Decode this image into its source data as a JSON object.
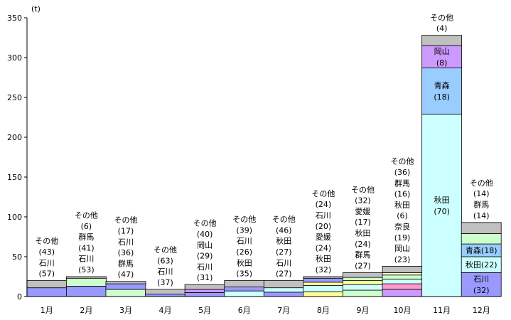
{
  "chart_data": {
    "type": "bar",
    "stacked": true,
    "y_unit_label": "(t)",
    "ylim": [
      0,
      350
    ],
    "yticks": [
      0,
      50,
      100,
      150,
      200,
      250,
      300,
      350
    ],
    "categories": [
      "1月",
      "2月",
      "3月",
      "4月",
      "5月",
      "6月",
      "7月",
      "8月",
      "9月",
      "10月",
      "11月",
      "12月"
    ],
    "bars": [
      {
        "category": "1月",
        "total": 20,
        "segments": [
          {
            "color": "#9999ff",
            "value": 11
          },
          {
            "color": "#c0c0c0",
            "value": 9
          }
        ],
        "labels": [
          "その他",
          "(43)",
          "石川",
          "(57)"
        ]
      },
      {
        "category": "2月",
        "total": 25,
        "segments": [
          {
            "color": "#9999ff",
            "value": 13
          },
          {
            "color": "#ccffcc",
            "value": 10
          },
          {
            "color": "#c0c0c0",
            "value": 2
          }
        ],
        "labels": [
          "その他",
          "(6)",
          "群馬",
          "(41)",
          "石川",
          "(53)"
        ]
      },
      {
        "category": "3月",
        "total": 19,
        "segments": [
          {
            "color": "#ccffcc",
            "value": 9
          },
          {
            "color": "#9999ff",
            "value": 7
          },
          {
            "color": "#c0c0c0",
            "value": 3
          }
        ],
        "labels": [
          "その他",
          "(17)",
          "石川",
          "(36)",
          "群馬",
          "(47)"
        ]
      },
      {
        "category": "4月",
        "total": 9,
        "segments": [
          {
            "color": "#9999ff",
            "value": 3
          },
          {
            "color": "#c0c0c0",
            "value": 6
          }
        ],
        "labels": [
          "その他",
          "(63)",
          "石川",
          "(37)"
        ]
      },
      {
        "category": "5月",
        "total": 15,
        "segments": [
          {
            "color": "#9999ff",
            "value": 5
          },
          {
            "color": "#cc99ff",
            "value": 4
          },
          {
            "color": "#c0c0c0",
            "value": 6
          }
        ],
        "labels": [
          "その他",
          "(40)",
          "岡山",
          "(29)",
          "石川",
          "(31)"
        ]
      },
      {
        "category": "6月",
        "total": 20,
        "segments": [
          {
            "color": "#ccffff",
            "value": 7
          },
          {
            "color": "#9999ff",
            "value": 5
          },
          {
            "color": "#c0c0c0",
            "value": 8
          }
        ],
        "labels": [
          "その他",
          "(39)",
          "石川",
          "(26)",
          "秋田",
          "(35)"
        ]
      },
      {
        "category": "7月",
        "total": 20,
        "segments": [
          {
            "color": "#9999ff",
            "value": 5.5
          },
          {
            "color": "#ccffff",
            "value": 5.5
          },
          {
            "color": "#c0c0c0",
            "value": 9
          }
        ],
        "labels": [
          "その他",
          "(46)",
          "秋田",
          "(27)",
          "石川",
          "(27)"
        ]
      },
      {
        "category": "8月",
        "total": 25,
        "segments": [
          {
            "color": "#ffff99",
            "value": 6
          },
          {
            "color": "#ccffff",
            "value": 8
          },
          {
            "color": "#ffff99",
            "value": 4
          },
          {
            "color": "#9999ff",
            "value": 5
          },
          {
            "color": "#c0c0c0",
            "value": 2
          }
        ],
        "labels": [
          "その他",
          "(24)",
          "石川",
          "(20)",
          "愛媛",
          "(24)",
          "秋田",
          "(32)"
        ]
      },
      {
        "category": "9月",
        "total": 30,
        "segments": [
          {
            "color": "#ccffcc",
            "value": 8
          },
          {
            "color": "#ccffff",
            "value": 7
          },
          {
            "color": "#ffff99",
            "value": 5
          },
          {
            "color": "#ccffcc",
            "value": 4
          },
          {
            "color": "#c0c0c0",
            "value": 6
          }
        ],
        "labels": [
          "その他",
          "(32)",
          "愛媛",
          "(17)",
          "秋田",
          "(24)",
          "群馬",
          "(27)"
        ]
      },
      {
        "category": "10月",
        "total": 38,
        "segments": [
          {
            "color": "#cc99ff",
            "value": 9
          },
          {
            "color": "#ff99cc",
            "value": 7
          },
          {
            "color": "#ccffff",
            "value": 6
          },
          {
            "color": "#ccffcc",
            "value": 5
          },
          {
            "color": "#ffffcc",
            "value": 3
          },
          {
            "color": "#c0c0c0",
            "value": 8
          }
        ],
        "labels": [
          "その他",
          "(36)",
          "群馬",
          "(16)",
          "秋田",
          "(6)",
          "奈良",
          "(19)",
          "岡山",
          "(23)"
        ]
      },
      {
        "category": "11月",
        "total": 328,
        "segments": [
          {
            "color": "#ccffff",
            "value": 229,
            "label": [
              "秋田",
              "(70)"
            ]
          },
          {
            "color": "#99ccff",
            "value": 58,
            "label": [
              "青森",
              "(18)"
            ]
          },
          {
            "color": "#cc99ff",
            "value": 28,
            "label": [
              "岡山",
              "(8)"
            ]
          },
          {
            "color": "#c0c0c0",
            "value": 13
          }
        ],
        "labels": [
          "その他",
          "(4)"
        ]
      },
      {
        "category": "12月",
        "total": 93,
        "segments": [
          {
            "color": "#9999ff",
            "value": 30,
            "label": [
              "石川",
              "(32)"
            ]
          },
          {
            "color": "#ccffff",
            "value": 20,
            "label": [
              "秋田(22)"
            ]
          },
          {
            "color": "#99ccff",
            "value": 16,
            "label": [
              "青森(18)"
            ]
          },
          {
            "color": "#ccffcc",
            "value": 13
          },
          {
            "color": "#c0c0c0",
            "value": 14
          }
        ],
        "labels": [
          "その他",
          "(14)",
          "群馬",
          "(14)"
        ]
      }
    ]
  }
}
